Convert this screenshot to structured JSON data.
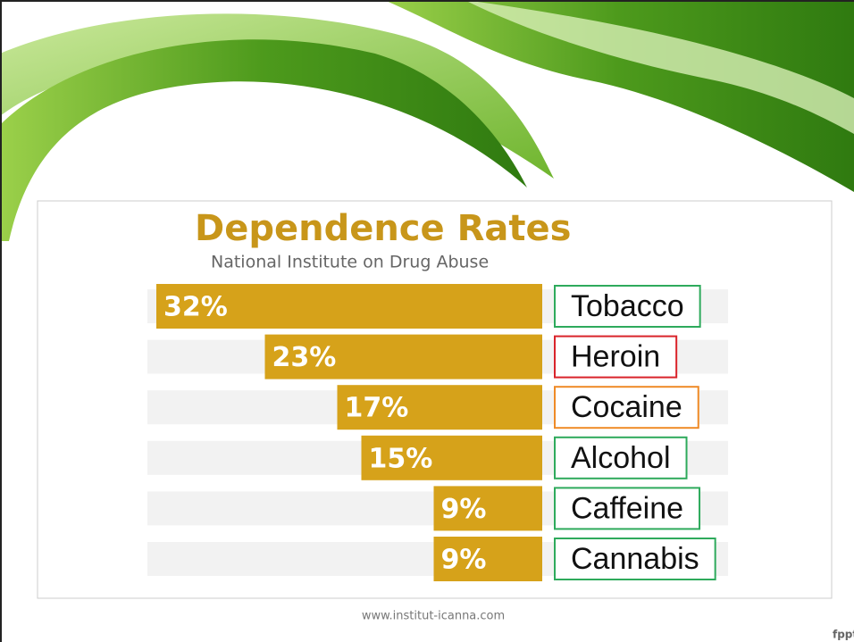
{
  "chart_data": {
    "type": "bar",
    "title": "Dependence Rates",
    "subtitle": "National Institute on Drug Abuse",
    "categories": [
      "Tobacco",
      "Heroin",
      "Cocaine",
      "Alcohol",
      "Caffeine",
      "Cannabis"
    ],
    "values": [
      32,
      23,
      17,
      15,
      9,
      9
    ],
    "value_labels": [
      "32%",
      "23%",
      "17%",
      "15%",
      "9%",
      "9%"
    ],
    "color": "#d6a21a",
    "label_colors": [
      "#2eaa5c",
      "#d9232a",
      "#ef8a26",
      "#2eaa5c",
      "#2eaa5c",
      "#2eaa5c"
    ]
  },
  "footer": {
    "source": "www.institut-icanna.com",
    "brand": "fppt.com"
  }
}
